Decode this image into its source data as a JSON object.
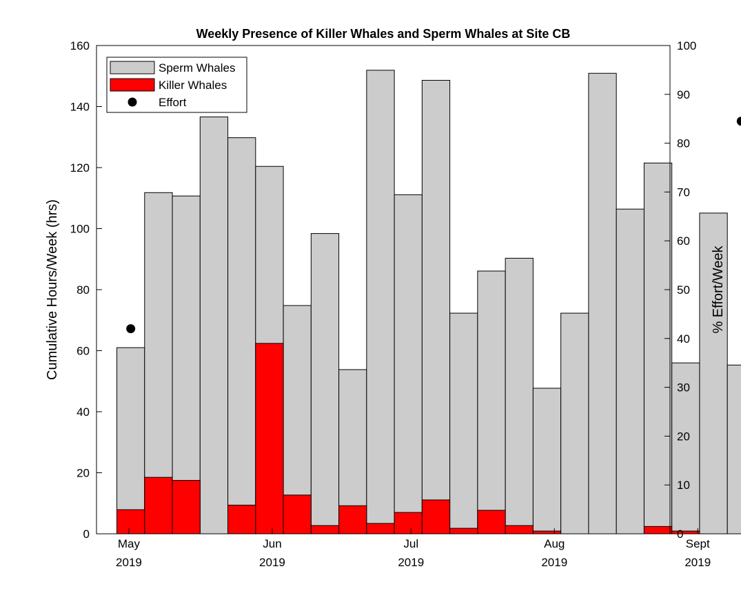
{
  "chart_data": {
    "type": "bar",
    "title": "Weekly Presence of Killer Whales and Sperm Whales at Site CB",
    "ylabel_left": "Cumulative Hours/Week (hrs)",
    "ylabel_right": "% Effort/Week",
    "ylim_left": [
      0,
      160
    ],
    "ylim_right": [
      0,
      100
    ],
    "yticks_left": [
      "0",
      "20",
      "40",
      "60",
      "80",
      "100",
      "120",
      "140",
      "160"
    ],
    "yticks_right": [
      "0",
      "10",
      "20",
      "30",
      "40",
      "50",
      "60",
      "70",
      "80",
      "90",
      "100"
    ],
    "xlim_days": [
      0,
      124
    ],
    "x_ticks": [
      {
        "day": 7,
        "month": "May",
        "year": "2019"
      },
      {
        "day": 38,
        "month": "Jun",
        "year": "2019"
      },
      {
        "day": 68,
        "month": "Jul",
        "year": "2019"
      },
      {
        "day": 99,
        "month": "Aug",
        "year": "2019"
      },
      {
        "day": 130,
        "month": "Sept",
        "year": "2019"
      }
    ],
    "legend_position": "top-left",
    "legend": [
      {
        "label": "Sperm Whales",
        "color": "#cccccc",
        "kind": "bar"
      },
      {
        "label": "Killer Whales",
        "color": "#ff0000",
        "kind": "bar"
      },
      {
        "label": "Effort",
        "color": "#000000",
        "kind": "dot"
      }
    ],
    "week_start_days": [
      0,
      6,
      12,
      18,
      24,
      30,
      36,
      42,
      48,
      54,
      60,
      66,
      72,
      78,
      84,
      90,
      96,
      102,
      108,
      114,
      120,
      126,
      132,
      138
    ],
    "series": [
      {
        "name": "Sperm Whales",
        "color": "#cccccc",
        "values": [
          61,
          111.8,
          110.7,
          136.6,
          129.8,
          120.4,
          74.8,
          98.4,
          53.8,
          151.9,
          111.1,
          148.6,
          72.3,
          86.1,
          90.3,
          47.7,
          72.3,
          150.9,
          106.4,
          121.5,
          56,
          105.1,
          55.3
        ]
      },
      {
        "name": "Killer Whales",
        "color": "#ff0000",
        "values": [
          7.9,
          18.5,
          17.5,
          0,
          9.4,
          62.4,
          12.7,
          2.7,
          9.2,
          3.4,
          7,
          11.1,
          1.8,
          7.7,
          2.7,
          0.9,
          0,
          0,
          0,
          2.4,
          0.9,
          0,
          0
        ]
      },
      {
        "name": "Effort",
        "axis": "right",
        "color": "#000000",
        "points": [
          {
            "week_index": 0,
            "value": 42
          },
          {
            "week_index": 22,
            "value": 84.5
          }
        ]
      }
    ]
  }
}
